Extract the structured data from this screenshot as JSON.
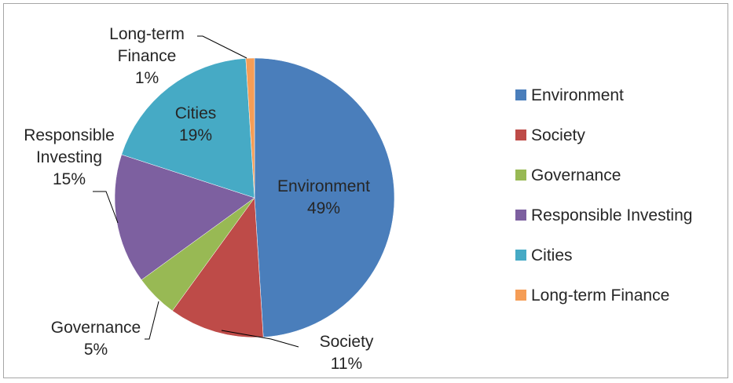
{
  "chart_data": {
    "type": "pie",
    "title": "",
    "legend_position": "right",
    "slices": [
      {
        "name": "Environment",
        "value": 49,
        "label": "49%",
        "color": "#4a7ebb"
      },
      {
        "name": "Society",
        "value": 11,
        "label": "11%",
        "color": "#be4b48"
      },
      {
        "name": "Governance",
        "value": 5,
        "label": "5%",
        "color": "#98b954"
      },
      {
        "name": "Responsible Investing",
        "value": 15,
        "label": "15%",
        "color": "#7d60a0"
      },
      {
        "name": "Cities",
        "value": 19,
        "label": "19%",
        "color": "#46aac5"
      },
      {
        "name": "Long-term Finance",
        "value": 1,
        "label": "1%",
        "color": "#f59d56"
      }
    ],
    "data_labels": {
      "Environment": [
        "Environment",
        "49%"
      ],
      "Society": [
        "Society",
        "11%"
      ],
      "Governance": [
        "Governance",
        "5%"
      ],
      "Responsible Investing": [
        "Responsible",
        "Investing",
        "15%"
      ],
      "Cities": [
        "Cities",
        "19%"
      ],
      "Long-term Finance": [
        "Long-term",
        "Finance",
        "1%"
      ]
    }
  }
}
